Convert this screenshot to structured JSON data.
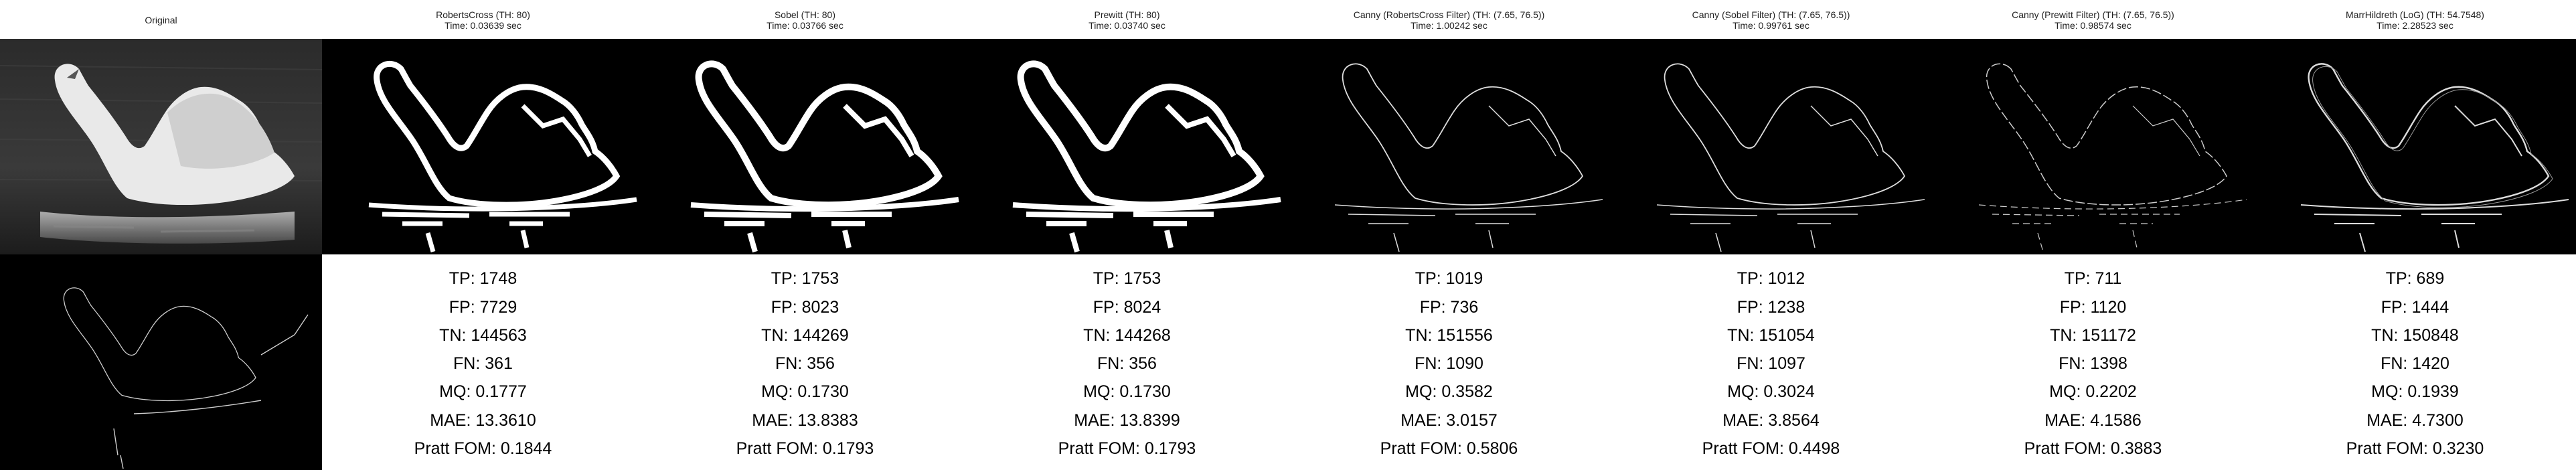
{
  "columns": [
    {
      "title": "Original",
      "time": ""
    },
    {
      "title": "RobertsCross (TH: 80)",
      "time": "Time: 0.03639 sec"
    },
    {
      "title": "Sobel (TH: 80)",
      "time": "Time: 0.03766 sec"
    },
    {
      "title": "Prewitt (TH: 80)",
      "time": "Time: 0.03740 sec"
    },
    {
      "title": "Canny (RobertsCross Filter) (TH: (7.65, 76.5))",
      "time": "Time: 1.00242 sec"
    },
    {
      "title": "Canny (Sobel Filter) (TH: (7.65, 76.5))",
      "time": "Time: 0.99761 sec"
    },
    {
      "title": "Canny (Prewitt Filter) (TH: (7.65, 76.5))",
      "time": "Time: 0.98574 sec"
    },
    {
      "title": "MarrHildreth (LoG) (TH: 54.7548)",
      "time": "Time: 2.28523 sec"
    }
  ],
  "metrics": [
    [
      "TP: 1748",
      "FP: 7729",
      "TN: 144563",
      "FN: 361",
      "MQ: 0.1777",
      "MAE: 13.3610",
      "Pratt FOM: 0.1844"
    ],
    [
      "TP: 1753",
      "FP: 8023",
      "TN: 144269",
      "FN: 356",
      "MQ: 0.1730",
      "MAE: 13.8383",
      "Pratt FOM: 0.1793"
    ],
    [
      "TP: 1753",
      "FP: 8024",
      "TN: 144268",
      "FN: 356",
      "MQ: 0.1730",
      "MAE: 13.8399",
      "Pratt FOM: 0.1793"
    ],
    [
      "TP: 1019",
      "FP: 736",
      "TN: 151556",
      "FN: 1090",
      "MQ: 0.3582",
      "MAE: 3.0157",
      "Pratt FOM: 0.5806"
    ],
    [
      "TP: 1012",
      "FP: 1238",
      "TN: 151054",
      "FN: 1097",
      "MQ: 0.3024",
      "MAE: 3.8564",
      "Pratt FOM: 0.4498"
    ],
    [
      "TP: 711",
      "FP: 1120",
      "TN: 151172",
      "FN: 1398",
      "MQ: 0.2202",
      "MAE: 4.1586",
      "Pratt FOM: 0.3883"
    ],
    [
      "TP: 689",
      "FP: 1444",
      "TN: 150848",
      "FN: 1420",
      "MQ: 0.1939",
      "MAE: 4.7300",
      "Pratt FOM: 0.3230"
    ]
  ]
}
